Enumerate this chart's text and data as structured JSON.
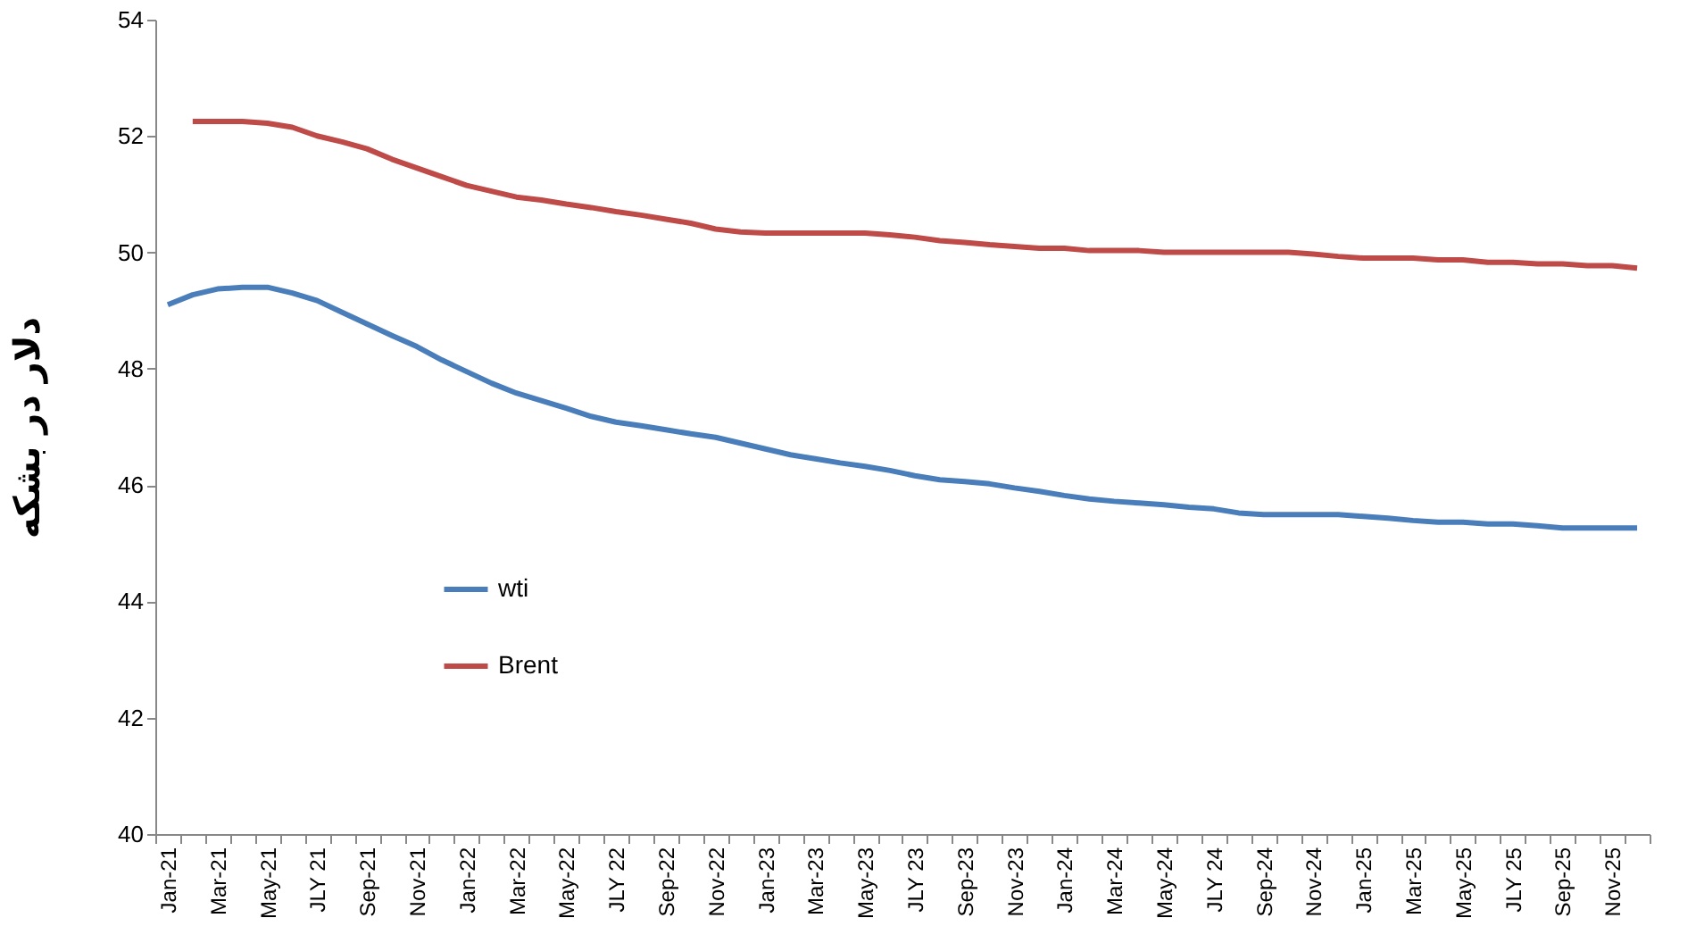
{
  "chart_data": {
    "type": "line",
    "ylabel": "دلار در بشکه",
    "categories": [
      "Jan-21",
      null,
      "Mar-21",
      null,
      "May-21",
      null,
      "JLY 21",
      null,
      "Sep-21",
      null,
      "Nov-21",
      null,
      "Jan-22",
      null,
      "Mar-22",
      null,
      "May-22",
      null,
      "JLY 22",
      null,
      "Sep-22",
      null,
      "Nov-22",
      null,
      "Jan-23",
      null,
      "Mar-23",
      null,
      "May-23",
      null,
      "JLY 23",
      null,
      "Sep-23",
      null,
      "Nov-23",
      null,
      "Jan-24",
      null,
      "Mar-24",
      null,
      "May-24",
      null,
      "JLY 24",
      null,
      "Sep-24",
      null,
      "Nov-24",
      null,
      "Jan-25",
      null,
      "Mar-25",
      null,
      "May-25",
      null,
      "JLY 25",
      null,
      "Sep-25",
      null,
      "Nov-25",
      null
    ],
    "series": [
      {
        "name": "wti",
        "color": "#4a7ebb",
        "values": [
          49.1,
          49.27,
          49.37,
          49.4,
          49.4,
          49.3,
          49.17,
          48.97,
          48.77,
          48.57,
          48.38,
          48.15,
          47.95,
          47.75,
          47.58,
          47.45,
          47.32,
          47.18,
          47.08,
          47.02,
          46.95,
          46.88,
          46.82,
          46.72,
          46.62,
          46.52,
          46.45,
          46.38,
          46.32,
          46.25,
          46.16,
          46.09,
          46.06,
          46.02,
          45.95,
          45.89,
          45.82,
          45.76,
          45.72,
          45.69,
          45.66,
          45.62,
          45.59,
          45.52,
          45.49,
          45.49,
          45.49,
          45.49,
          45.46,
          45.43,
          45.39,
          45.36,
          45.36,
          45.33,
          45.33,
          45.3,
          45.26,
          45.26,
          45.26,
          45.26
        ]
      },
      {
        "name": "Brent",
        "color": "#be4b48",
        "values": [
          null,
          52.25,
          52.25,
          52.25,
          52.22,
          52.15,
          52.0,
          51.9,
          51.78,
          51.6,
          51.45,
          51.3,
          51.15,
          51.05,
          50.95,
          50.9,
          50.83,
          50.77,
          50.7,
          50.64,
          50.57,
          50.5,
          50.4,
          50.35,
          50.33,
          50.33,
          50.33,
          50.33,
          50.33,
          50.3,
          50.26,
          50.2,
          50.17,
          50.13,
          50.1,
          50.07,
          50.07,
          50.03,
          50.03,
          50.03,
          50.0,
          50.0,
          50.0,
          50.0,
          50.0,
          50.0,
          49.97,
          49.93,
          49.9,
          49.9,
          49.9,
          49.87,
          49.87,
          49.83,
          49.83,
          49.8,
          49.8,
          49.77,
          49.77,
          49.73
        ]
      }
    ],
    "ylim": [
      40,
      54
    ],
    "yticks": [
      40,
      42,
      44,
      46,
      48,
      50,
      52,
      54
    ],
    "grid": false,
    "legend": "bottom left",
    "marker": "none",
    "line_style": "solid"
  }
}
